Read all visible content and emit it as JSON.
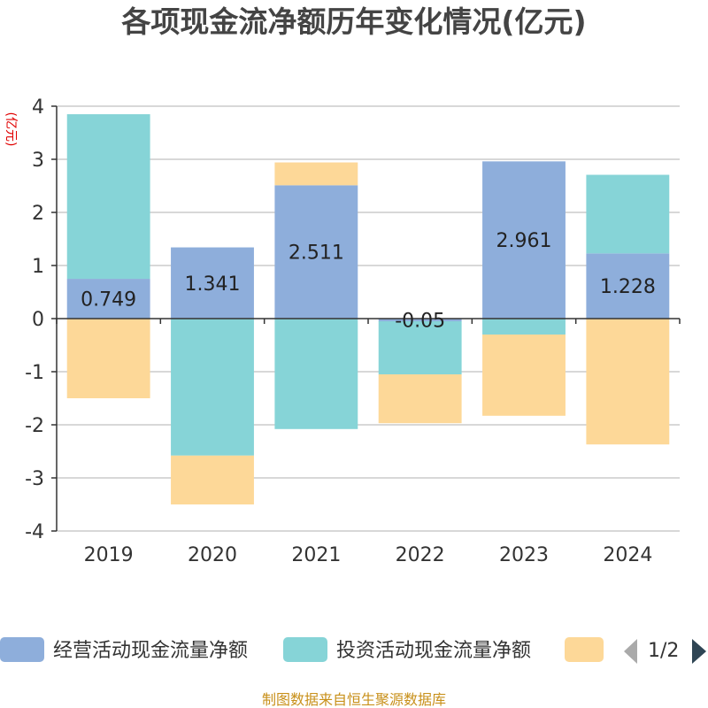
{
  "chart_data": {
    "type": "bar",
    "stacked": true,
    "title": "各项现金流净额历年变化情况(亿元)",
    "ylabel": "(亿元)",
    "categories": [
      "2019",
      "2020",
      "2021",
      "2022",
      "2023",
      "2024"
    ],
    "ylim": [
      -4,
      4
    ],
    "yticks": [
      "-4",
      "-3",
      "-2",
      "-1",
      "0",
      "1",
      "2",
      "3",
      "4"
    ],
    "grid": true,
    "legend_position": "bottom",
    "series": [
      {
        "name": "经营活动现金流量净额",
        "color": "#8eaedb",
        "values": [
          0.749,
          1.341,
          2.511,
          -0.05,
          2.961,
          1.228
        ],
        "labels": [
          "0.749",
          "1.341",
          "2.511",
          "-0.05",
          "2.961",
          "1.228"
        ]
      },
      {
        "name": "投资活动现金流量净额",
        "color": "#86d4d7",
        "values": [
          3.1,
          -2.58,
          -2.08,
          -1.0,
          -0.3,
          1.48
        ]
      },
      {
        "name": "",
        "color": "#fdd898",
        "values": [
          -1.5,
          -0.92,
          0.43,
          -0.92,
          -1.53,
          -2.37
        ]
      }
    ]
  },
  "legend": {
    "page": "1/2"
  },
  "source": "制图数据来自恒生聚源数据库"
}
